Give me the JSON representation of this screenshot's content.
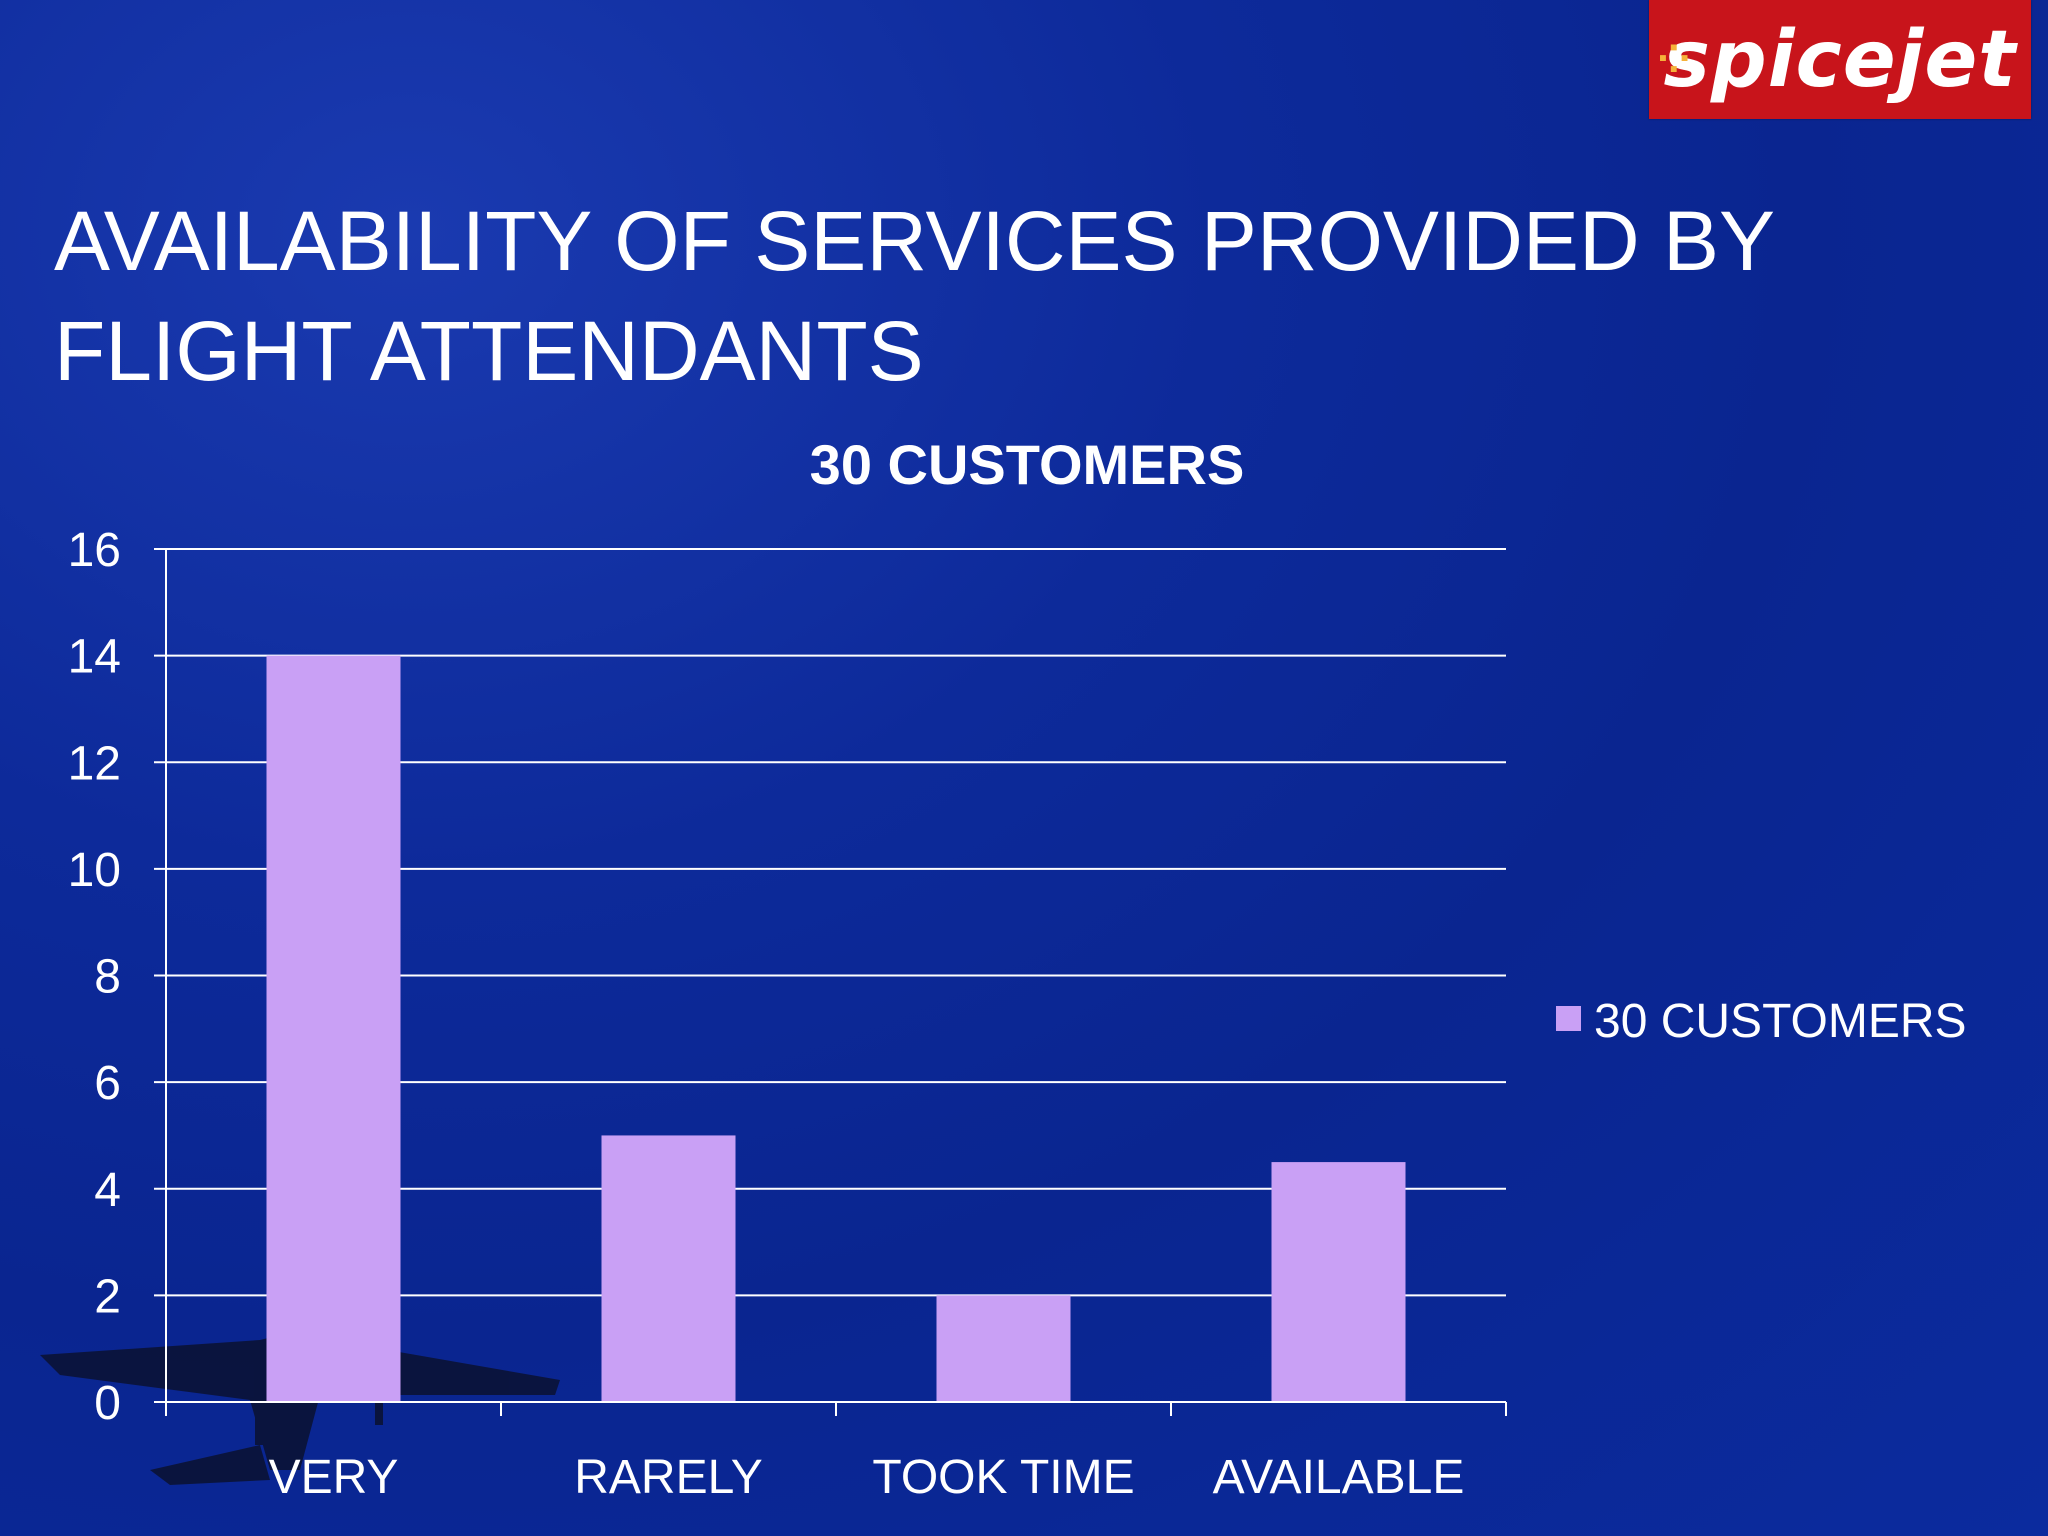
{
  "logo": {
    "text": "spicejet"
  },
  "slide": {
    "title": "AVAILABILITY OF SERVICES PROVIDED BY FLIGHT ATTENDANTS"
  },
  "colors": {
    "background": "#0b2b9e",
    "bar": "#c9a0f5",
    "logo_red": "#c8141b",
    "text": "#ffffff"
  },
  "chart_data": {
    "type": "bar",
    "title": "30 CUSTOMERS",
    "categories": [
      "VERY",
      "RARELY",
      "TOOK TIME",
      "AVAILABLE"
    ],
    "series": [
      {
        "name": "30 CUSTOMERS",
        "values": [
          14,
          5,
          2,
          4.5
        ]
      }
    ],
    "xlabel": "",
    "ylabel": "",
    "ylim": [
      0,
      16
    ],
    "yticks": [
      0,
      2,
      4,
      6,
      8,
      10,
      12,
      14,
      16
    ],
    "grid": true,
    "legend": "right"
  }
}
